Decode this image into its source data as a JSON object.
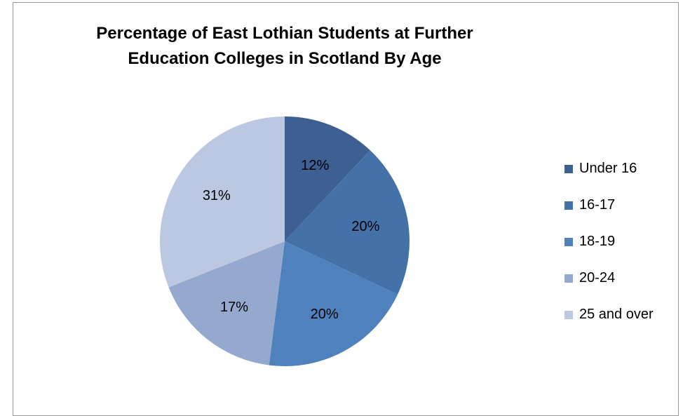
{
  "chart_data": {
    "type": "pie",
    "title": "Percentage of East Lothian Students at Further Education Colleges in Scotland By Age",
    "title_lines": [
      "Percentage of East Lothian Students at Further",
      "Education Colleges in Scotland By Age"
    ],
    "categories": [
      "Under 16",
      "16-17",
      "18-19",
      "20-24",
      "25 and over"
    ],
    "values": [
      12,
      20,
      20,
      17,
      31
    ],
    "value_labels": [
      "12%",
      "20%",
      "20%",
      "17%",
      "31%"
    ],
    "colors": [
      "#3d5f91",
      "#4472a8",
      "#4f81bd",
      "#95a9cf",
      "#bcc8e1"
    ],
    "legend_position": "right"
  }
}
